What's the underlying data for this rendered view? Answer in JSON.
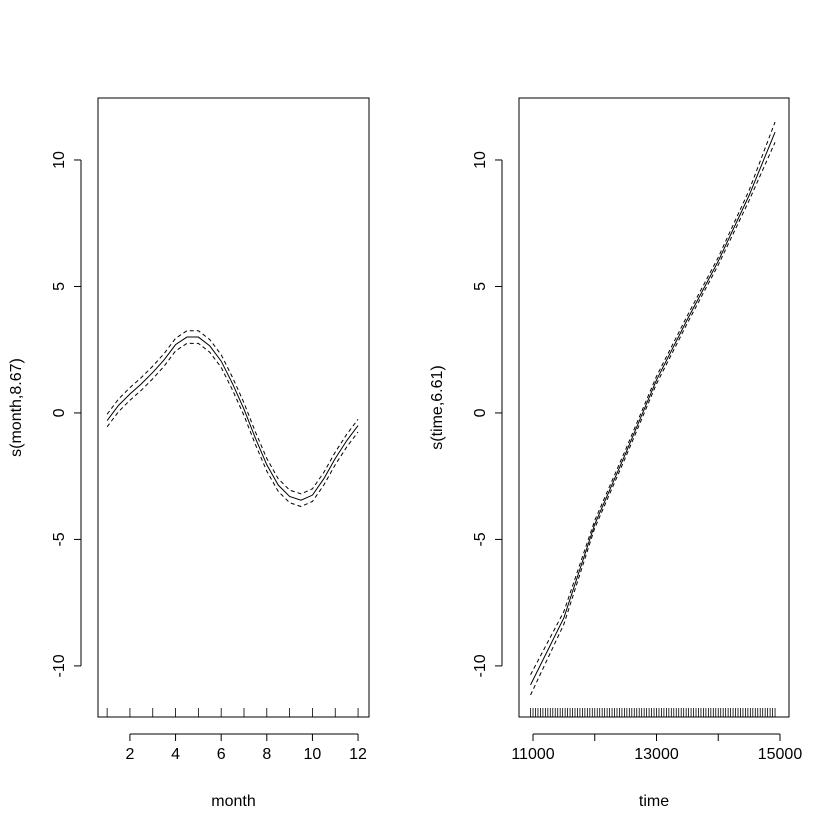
{
  "chart_data": [
    {
      "type": "line",
      "xlabel": "month",
      "ylabel": "s(month,8.67)",
      "x": [
        1,
        1.5,
        2,
        2.5,
        3,
        3.5,
        4,
        4.5,
        5,
        5.5,
        6,
        6.5,
        7,
        7.5,
        8,
        8.5,
        9,
        9.5,
        10,
        10.5,
        11,
        11.5,
        12
      ],
      "series": [
        {
          "color": "#000000",
          "dashed": false,
          "values": [
            -0.3,
            0.3,
            0.75,
            1.15,
            1.6,
            2.1,
            2.7,
            3.0,
            3.0,
            2.65,
            2.05,
            1.15,
            0.15,
            -1.0,
            -2.05,
            -2.85,
            -3.3,
            -3.45,
            -3.25,
            -2.6,
            -1.8,
            -1.1,
            -0.5
          ]
        },
        {
          "color": "#000000",
          "dashed": true,
          "values": [
            -0.05,
            0.55,
            1.0,
            1.4,
            1.85,
            2.35,
            2.95,
            3.25,
            3.25,
            2.9,
            2.3,
            1.4,
            0.4,
            -0.75,
            -1.8,
            -2.6,
            -3.05,
            -3.2,
            -3.0,
            -2.35,
            -1.55,
            -0.85,
            -0.25
          ]
        },
        {
          "color": "#000000",
          "dashed": true,
          "values": [
            -0.55,
            0.05,
            0.5,
            0.9,
            1.35,
            1.85,
            2.45,
            2.75,
            2.75,
            2.4,
            1.8,
            0.9,
            -0.1,
            -1.25,
            -2.3,
            -3.1,
            -3.55,
            -3.7,
            -3.5,
            -2.85,
            -2.05,
            -1.35,
            -0.75
          ]
        }
      ],
      "rug": [
        1,
        2,
        3,
        4,
        5,
        6,
        7,
        8,
        9,
        10,
        11,
        12
      ],
      "xlim": [
        0.6,
        12.48
      ],
      "ylim": [
        -12.02,
        12.45
      ],
      "xticks": [
        2,
        4,
        6,
        8,
        10,
        12
      ],
      "yticks": [
        -10,
        -5,
        0,
        5,
        10
      ]
    },
    {
      "type": "line",
      "xlabel": "time",
      "ylabel": "s(time,6.61)",
      "x": [
        10960,
        11500,
        12000,
        12500,
        13000,
        13500,
        14000,
        14500,
        14920
      ],
      "series": [
        {
          "color": "#000000",
          "dashed": false,
          "values": [
            -10.75,
            -8.1,
            -4.4,
            -1.6,
            1.3,
            3.7,
            6.0,
            8.6,
            11.1
          ]
        },
        {
          "color": "#000000",
          "dashed": true,
          "values": [
            -10.35,
            -7.85,
            -4.25,
            -1.45,
            1.45,
            3.85,
            6.15,
            8.8,
            11.5
          ]
        },
        {
          "color": "#000000",
          "dashed": true,
          "values": [
            -11.15,
            -8.35,
            -4.55,
            -1.75,
            1.15,
            3.55,
            5.85,
            8.4,
            10.7
          ]
        }
      ],
      "rug": [
        10960,
        11000,
        11040,
        11080,
        11120,
        11160,
        11200,
        11240,
        11280,
        11320,
        11360,
        11400,
        11440,
        11480,
        11520,
        11560,
        11600,
        11640,
        11680,
        11720,
        11760,
        11800,
        11840,
        11880,
        11920,
        11960,
        12000,
        12040,
        12080,
        12120,
        12160,
        12200,
        12240,
        12280,
        12320,
        12360,
        12400,
        12440,
        12480,
        12520,
        12560,
        12600,
        12640,
        12680,
        12720,
        12760,
        12800,
        12840,
        12880,
        12920,
        12960,
        13000,
        13040,
        13080,
        13120,
        13160,
        13200,
        13240,
        13280,
        13320,
        13360,
        13400,
        13440,
        13480,
        13520,
        13560,
        13600,
        13640,
        13680,
        13720,
        13760,
        13800,
        13840,
        13880,
        13920,
        13960,
        14000,
        14040,
        14080,
        14120,
        14160,
        14200,
        14240,
        14280,
        14320,
        14360,
        14400,
        14440,
        14480,
        14520,
        14560,
        14600,
        14640,
        14680,
        14720,
        14760,
        14800,
        14840,
        14880,
        14920
      ],
      "xlim": [
        10773,
        15146
      ],
      "ylim": [
        -12.02,
        12.45
      ],
      "xticks": [
        11000,
        {
          "value": 12000,
          "label": null
        },
        13000,
        {
          "value": 14000,
          "label": null
        },
        15000
      ],
      "yticks": [
        -10,
        -5,
        0,
        5,
        10
      ]
    }
  ]
}
